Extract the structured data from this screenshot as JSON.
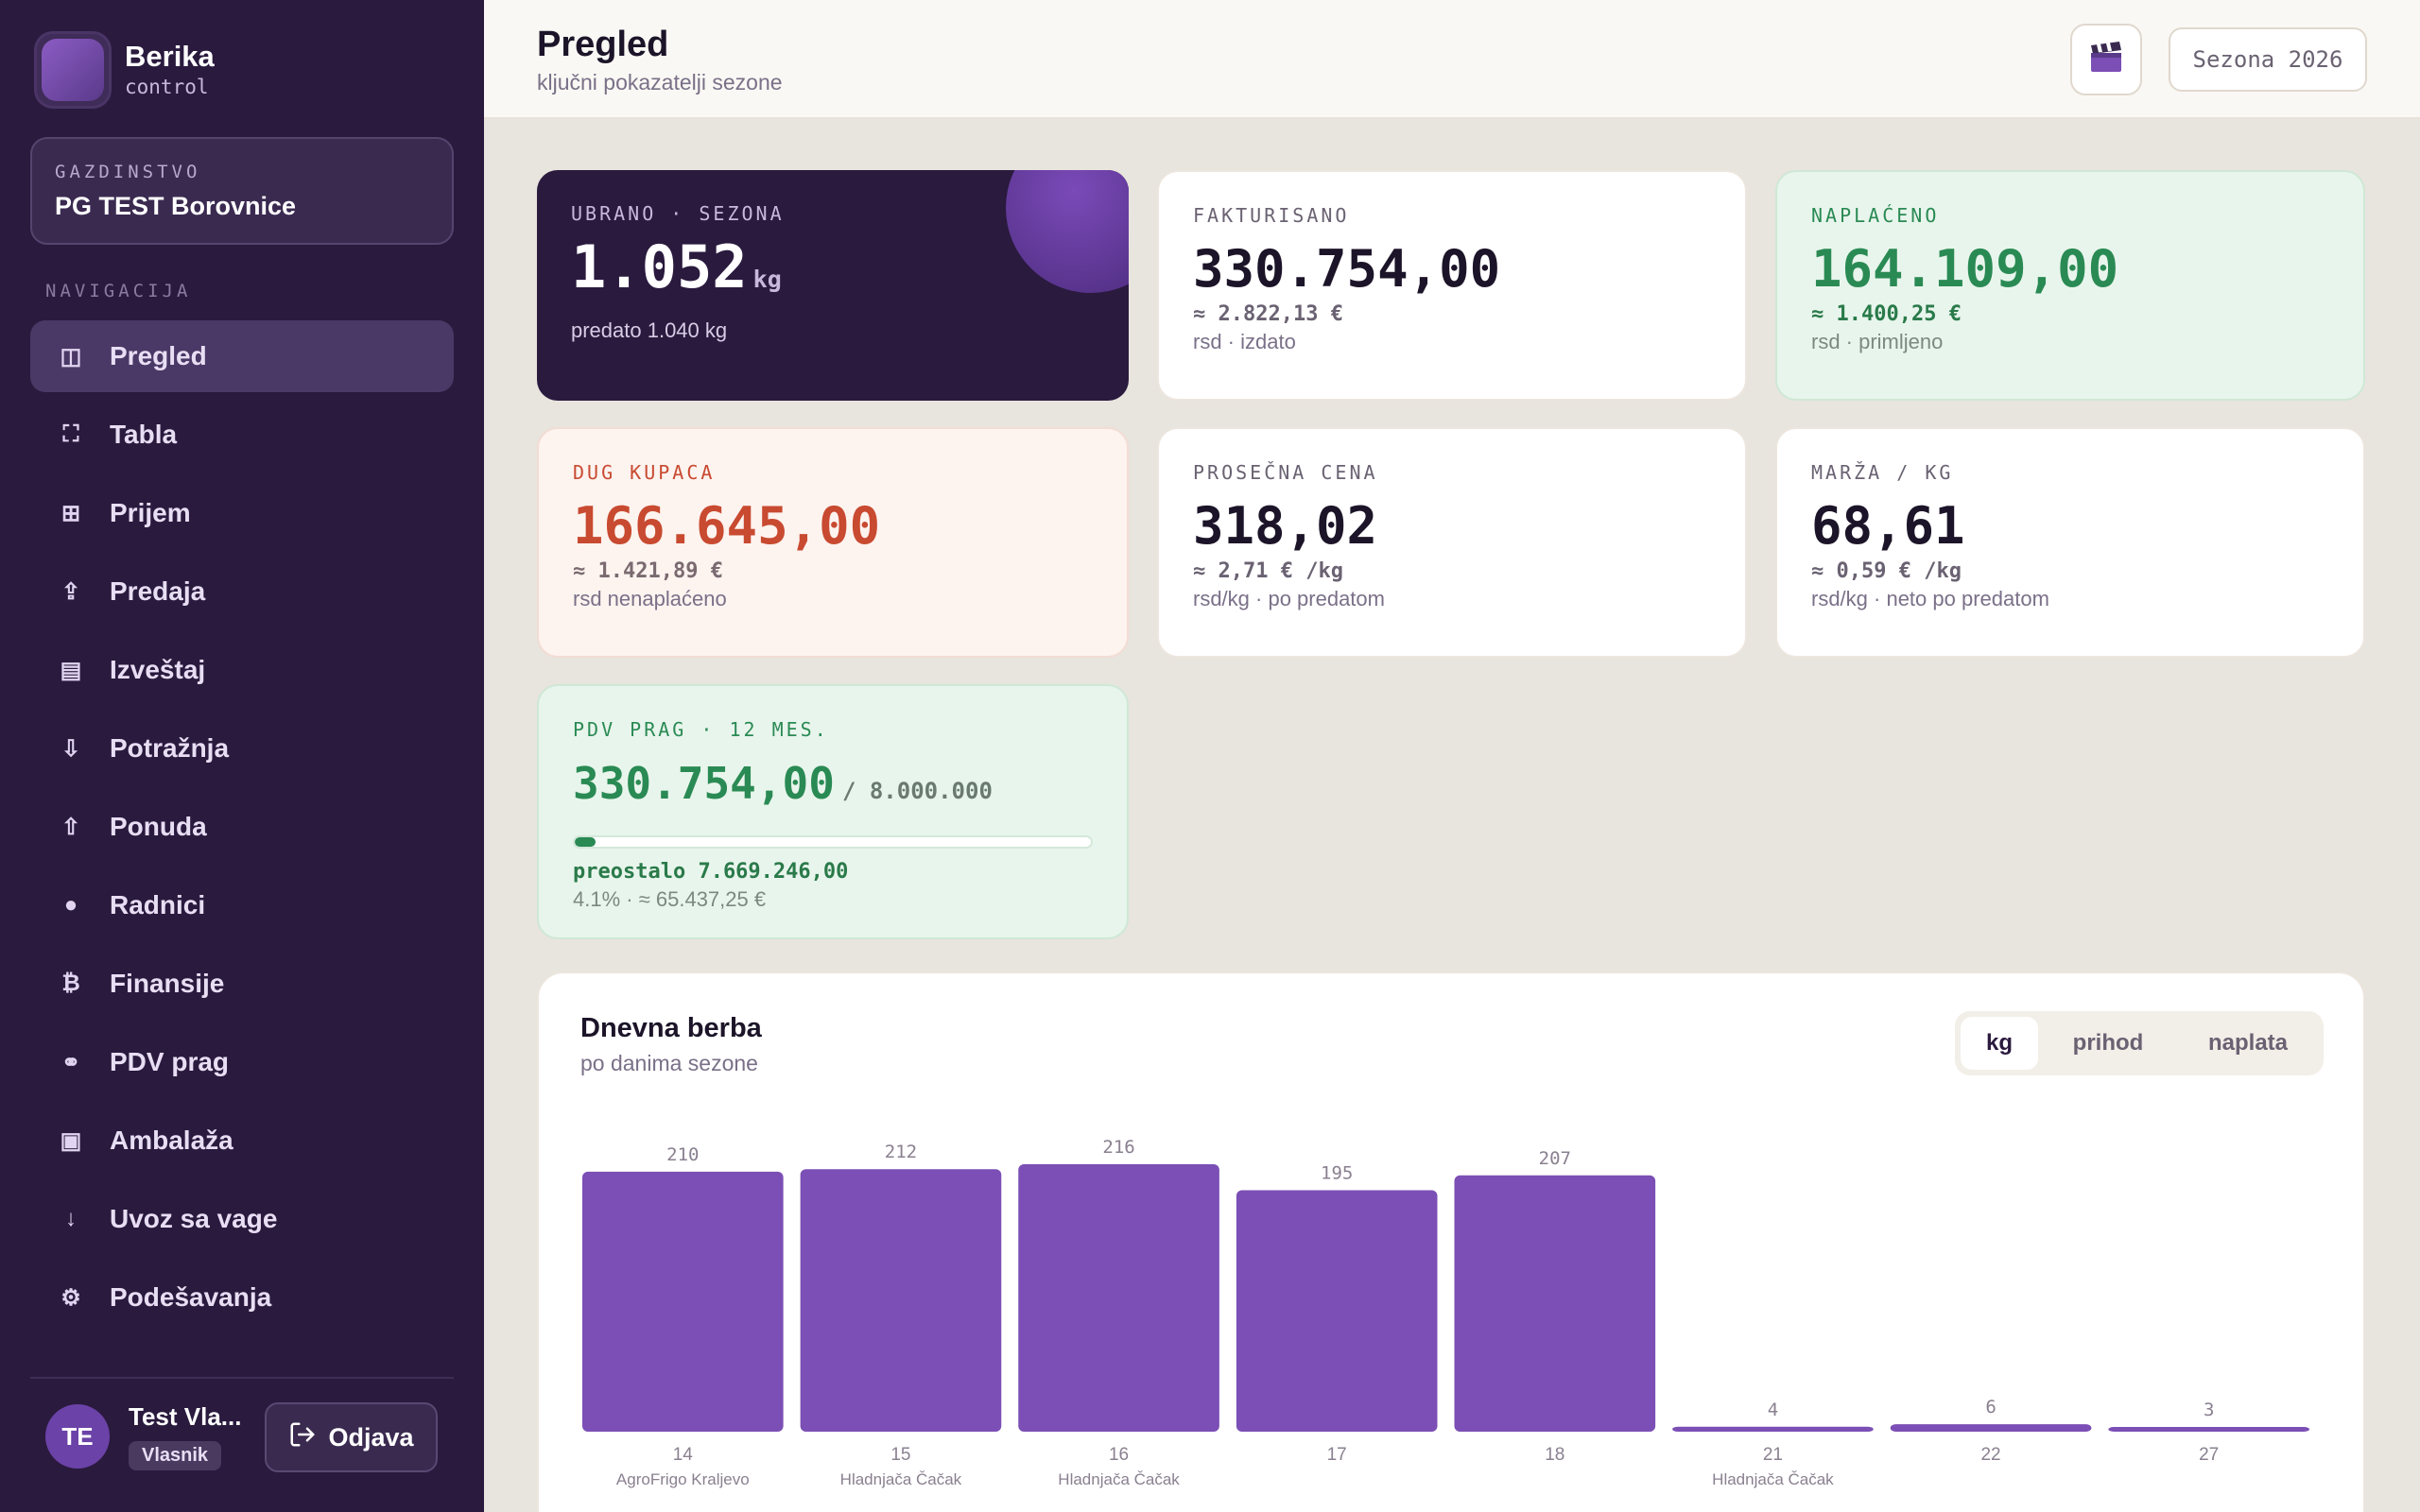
{
  "brand": {
    "name": "Berika",
    "sub": "control"
  },
  "farm": {
    "label": "GAZDINSTVO",
    "name": "PG TEST Borovnice"
  },
  "nav": {
    "heading": "NAVIGACIJA",
    "items": [
      {
        "label": "Pregled",
        "icon": "columns-icon",
        "glyph": "◫",
        "active": true
      },
      {
        "label": "Tabla",
        "icon": "frame-icon",
        "glyph": "⛶"
      },
      {
        "label": "Prijem",
        "icon": "grid-icon",
        "glyph": "⊞"
      },
      {
        "label": "Predaja",
        "icon": "upload-icon",
        "glyph": "⇪"
      },
      {
        "label": "Izveštaj",
        "icon": "report-icon",
        "glyph": "▤"
      },
      {
        "label": "Potražnja",
        "icon": "arrow-down-icon",
        "glyph": "⇩"
      },
      {
        "label": "Ponuda",
        "icon": "arrow-up-icon",
        "glyph": "⇧"
      },
      {
        "label": "Radnici",
        "icon": "dot-icon",
        "glyph": "●"
      },
      {
        "label": "Finansije",
        "icon": "bitcoin-icon",
        "glyph": "₿"
      },
      {
        "label": "PDV prag",
        "icon": "binoculars-icon",
        "glyph": "⚭"
      },
      {
        "label": "Ambalaža",
        "icon": "box-icon",
        "glyph": "▣"
      },
      {
        "label": "Uvoz sa vage",
        "icon": "import-icon",
        "glyph": "↓"
      },
      {
        "label": "Podešavanja",
        "icon": "gear-icon",
        "glyph": "⚙"
      }
    ]
  },
  "user": {
    "initials": "TE",
    "name": "Test Vla...",
    "role": "Vlasnik",
    "logout": "Odjava"
  },
  "header": {
    "title": "Pregled",
    "subtitle": "ključni pokazatelji sezone",
    "season": "Sezona 2026"
  },
  "cards": {
    "harvested": {
      "label": "UBRANO · SEZONA",
      "value": "1.052",
      "unit": "kg",
      "note": "predato 1.040 kg"
    },
    "invoiced": {
      "label": "FAKTURISANO",
      "value": "330.754,00",
      "approx": "≈ 2.822,13 €",
      "note": "rsd · izdato"
    },
    "collected": {
      "label": "NAPLAĆENO",
      "value": "164.109,00",
      "approx": "≈ 1.400,25 €",
      "note": "rsd · primljeno"
    },
    "debt": {
      "label": "DUG KUPACA",
      "value": "166.645,00",
      "approx": "≈ 1.421,89 €",
      "note": "rsd nenaplaćeno"
    },
    "avg_price": {
      "label": "PROSEČNA CENA",
      "value": "318,02",
      "approx": "≈ 2,71 € /kg",
      "note": "rsd/kg · po predatom"
    },
    "margin": {
      "label": "MARŽA / KG",
      "value": "68,61",
      "approx": "≈ 0,59 € /kg",
      "note": "rsd/kg · neto po predatom"
    },
    "vat": {
      "label": "PDV PRAG · 12 MES.",
      "value": "330.754,00",
      "limit": "/ 8.000.000",
      "progress": 0.041,
      "remaining": "preostalo 7.669.246,00",
      "note": "4.1% · ≈ 65.437,25 €"
    }
  },
  "chart": {
    "title": "Dnevna berba",
    "subtitle": "po danima sezone",
    "tabs": [
      {
        "label": "kg",
        "active": true
      },
      {
        "label": "prihod"
      },
      {
        "label": "naplata"
      }
    ]
  },
  "chart_data": {
    "type": "bar",
    "categories": [
      "14",
      "15",
      "16",
      "17",
      "18",
      "21",
      "22",
      "27"
    ],
    "sublabels": [
      "AgroFrigo Kraljevo",
      "Hladnjača Čačak",
      "Hladnjača Čačak",
      "",
      "",
      "Hladnjača Čačak",
      "",
      ""
    ],
    "values": [
      210,
      212,
      216,
      195,
      207,
      4,
      6,
      3
    ],
    "bar_color": "#7b4fb5",
    "ylim": [
      0,
      216
    ]
  },
  "colors": {
    "accent": "#7b4fb5",
    "sidebar": "#2a1a3e",
    "green": "#2a8a54",
    "red": "#c84a30"
  }
}
